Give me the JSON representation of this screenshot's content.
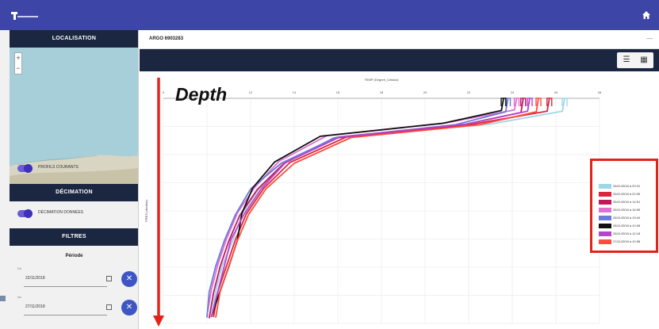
{
  "app": {
    "logo_text": ""
  },
  "sidebar": {
    "localisation_header": "LOCALISATION",
    "profile_toggle_label": "PROFILS COURANTS",
    "decimation_header": "DÉCIMATION",
    "decimation_toggle_label": "DÉCIMATION DONNÉES",
    "filters_header": "FILTRES",
    "period_label": "Période",
    "date_from": {
      "label": "Du",
      "value": "22/11/2018"
    },
    "date_to": {
      "label": "Au",
      "value": "27/11/2018"
    },
    "clear_symbol": "✕"
  },
  "main": {
    "title": "ARGO 6903283",
    "title_action": "—"
  },
  "chart_data": {
    "type": "line",
    "title": "",
    "xlabel": "TEMP (Degree_Celsius)",
    "ylabel": "PRES (decibar)",
    "x_ticks": [
      "0",
      "10",
      "12",
      "14",
      "16",
      "18",
      "20",
      "22",
      "24",
      "26",
      "28"
    ],
    "annotation": "Depth",
    "series": [
      {
        "name": "26/11/2018 à 20:31",
        "color": "#9fd7e8",
        "points": [
          [
            27.4,
            0
          ],
          [
            27.3,
            20
          ],
          [
            24.0,
            40
          ],
          [
            17.0,
            60
          ],
          [
            14.6,
            100
          ],
          [
            13.4,
            140
          ],
          [
            12.6,
            180
          ],
          [
            12.2,
            220
          ],
          [
            11.7,
            260
          ],
          [
            11.4,
            300
          ],
          [
            11.2,
            340
          ]
        ]
      },
      {
        "name": "26/11/2018 à 22:05",
        "color": "#d7263d",
        "points": [
          [
            26.7,
            0
          ],
          [
            26.6,
            20
          ],
          [
            23.2,
            40
          ],
          [
            17.4,
            60
          ],
          [
            14.8,
            100
          ],
          [
            13.6,
            140
          ],
          [
            12.8,
            180
          ],
          [
            12.3,
            220
          ],
          [
            11.9,
            260
          ],
          [
            11.5,
            300
          ],
          [
            11.3,
            340
          ]
        ]
      },
      {
        "name": "26/11/2018 à 14:51",
        "color": "#c2185b",
        "points": [
          [
            25.5,
            0
          ],
          [
            25.4,
            22
          ],
          [
            22.6,
            42
          ],
          [
            16.8,
            62
          ],
          [
            14.5,
            102
          ],
          [
            13.3,
            142
          ],
          [
            12.5,
            182
          ],
          [
            12.0,
            222
          ],
          [
            11.6,
            262
          ],
          [
            11.3,
            302
          ],
          [
            11.1,
            342
          ]
        ]
      },
      {
        "name": "26/11/2018 à 16:55",
        "color": "#e26fd0",
        "points": [
          [
            25.2,
            0
          ],
          [
            25.1,
            18
          ],
          [
            22.0,
            38
          ],
          [
            16.5,
            58
          ],
          [
            14.3,
            98
          ],
          [
            13.2,
            138
          ],
          [
            12.4,
            178
          ],
          [
            11.9,
            218
          ],
          [
            11.5,
            258
          ],
          [
            11.2,
            298
          ],
          [
            11.0,
            338
          ]
        ]
      },
      {
        "name": "26/11/2018 à 19:44",
        "color": "#6c7bd8",
        "points": [
          [
            24.8,
            0
          ],
          [
            24.7,
            21
          ],
          [
            22.4,
            41
          ],
          [
            16.9,
            61
          ],
          [
            14.4,
            101
          ],
          [
            13.0,
            141
          ],
          [
            12.3,
            181
          ],
          [
            11.8,
            221
          ],
          [
            11.4,
            261
          ],
          [
            11.1,
            301
          ],
          [
            11.0,
            341
          ]
        ]
      },
      {
        "name": "26/11/2018 à 10:08",
        "color": "#111111",
        "points": [
          [
            24.6,
            0
          ],
          [
            24.5,
            19
          ],
          [
            21.8,
            39
          ],
          [
            16.2,
            59
          ],
          [
            14.1,
            99
          ],
          [
            13.1,
            139
          ],
          [
            12.6,
            179
          ],
          [
            12.4,
            220
          ],
          [
            12.0,
            262
          ],
          [
            11.6,
            300
          ],
          [
            11.2,
            340
          ]
        ]
      },
      {
        "name": "26/11/2018 à 12:18",
        "color": "#b845c9",
        "points": [
          [
            25.8,
            0
          ],
          [
            25.7,
            20
          ],
          [
            22.9,
            40
          ],
          [
            17.1,
            60
          ],
          [
            14.6,
            100
          ],
          [
            13.5,
            140
          ],
          [
            12.7,
            180
          ],
          [
            12.1,
            220
          ],
          [
            11.8,
            260
          ],
          [
            11.5,
            300
          ],
          [
            11.2,
            340
          ]
        ]
      },
      {
        "name": "27/11/2018 à 10:58",
        "color": "#ff4b3e",
        "points": [
          [
            26.2,
            0
          ],
          [
            26.1,
            21
          ],
          [
            23.5,
            41
          ],
          [
            17.6,
            61
          ],
          [
            15.0,
            101
          ],
          [
            13.7,
            141
          ],
          [
            12.9,
            181
          ],
          [
            12.4,
            221
          ],
          [
            12.0,
            261
          ],
          [
            11.6,
            301
          ],
          [
            11.4,
            341
          ]
        ]
      }
    ],
    "xlim": [
      9,
      29
    ],
    "ylim": [
      0,
      350
    ],
    "grid": true,
    "legend_position": "right"
  }
}
